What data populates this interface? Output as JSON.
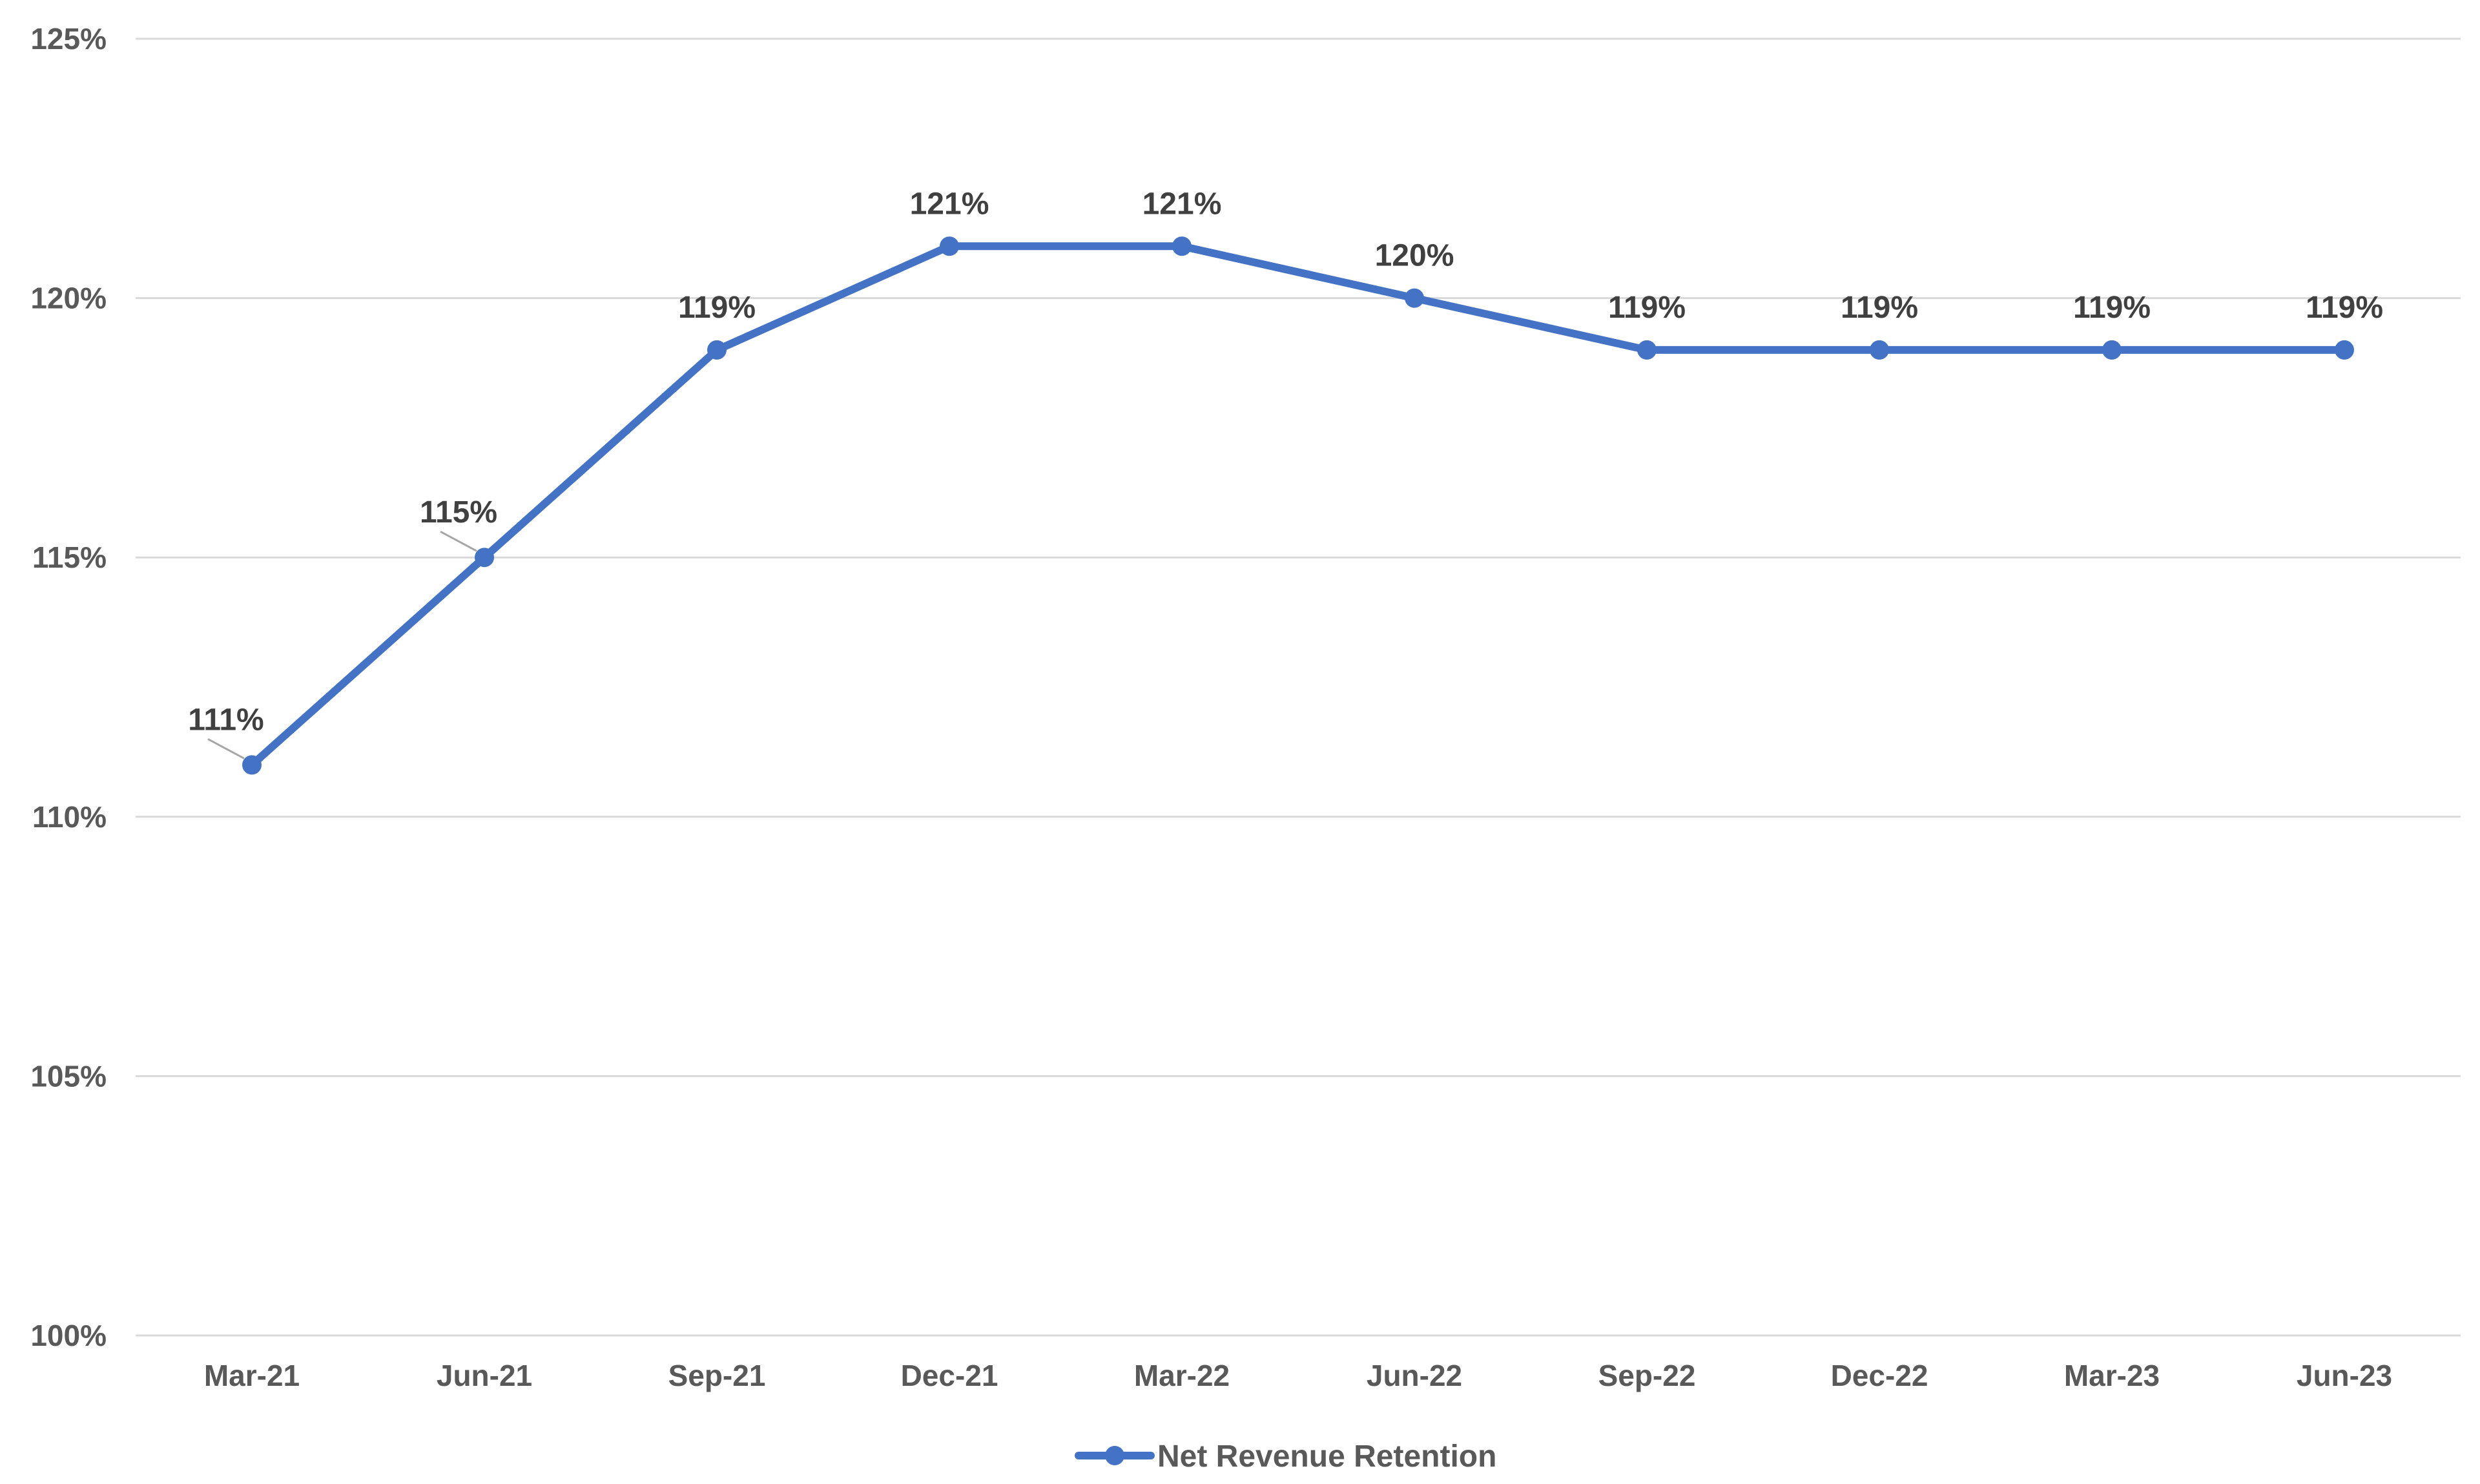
{
  "chart_data": {
    "type": "line",
    "categories": [
      "Mar-21",
      "Jun-21",
      "Sep-21",
      "Dec-21",
      "Mar-22",
      "Jun-22",
      "Sep-22",
      "Dec-22",
      "Mar-23",
      "Jun-23"
    ],
    "series": [
      {
        "name": "Net Revenue Retention",
        "values": [
          111,
          115,
          119,
          121,
          121,
          120,
          119,
          119,
          119,
          119
        ],
        "data_labels": [
          "111%",
          "115%",
          "119%",
          "121%",
          "121%",
          "120%",
          "119%",
          "119%",
          "119%",
          "119%"
        ],
        "color": "#4472C4"
      }
    ],
    "y_ticks": [
      100,
      105,
      110,
      115,
      120,
      125
    ],
    "y_tick_labels": [
      "100%",
      "105%",
      "110%",
      "115%",
      "120%",
      "125%"
    ],
    "ylim": [
      100,
      125
    ],
    "grid": true,
    "gridline_color": "#D9D9D9",
    "legend_position": "bottom",
    "title": "",
    "xlabel": "",
    "ylabel": ""
  }
}
